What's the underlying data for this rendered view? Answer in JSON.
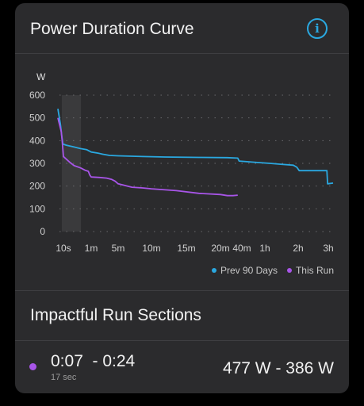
{
  "card": {
    "title": "Power Duration Curve",
    "info_icon": "info-icon"
  },
  "colors": {
    "prev": "#2aa8e0",
    "run": "#a855e8",
    "card_bg": "#2b2b2d"
  },
  "chart_data": {
    "type": "line",
    "ylabel": "W",
    "ylim": [
      0,
      600
    ],
    "yticks": [
      0,
      100,
      200,
      300,
      400,
      500,
      600
    ],
    "x_scale": "log",
    "xticks": [
      {
        "label": "10s",
        "sec": 10
      },
      {
        "label": "1m",
        "sec": 60
      },
      {
        "label": "5m",
        "sec": 300
      },
      {
        "label": "10m",
        "sec": 600
      },
      {
        "label": "15m",
        "sec": 900
      },
      {
        "label": "20m",
        "sec": 1200
      },
      {
        "label": "40m",
        "sec": 2400
      },
      {
        "label": "1h",
        "sec": 3600
      },
      {
        "label": "2h",
        "sec": 7200
      },
      {
        "label": "3h",
        "sec": 10800
      }
    ],
    "grid": "dotted horizontal",
    "highlight_range_sec": [
      7,
      24
    ],
    "series": [
      {
        "name": "Prev 90 Days",
        "color": "#2aa8e0",
        "points": [
          [
            1,
            540
          ],
          [
            3,
            470
          ],
          [
            5,
            420
          ],
          [
            8,
            385
          ],
          [
            12,
            380
          ],
          [
            20,
            372
          ],
          [
            30,
            365
          ],
          [
            45,
            360
          ],
          [
            60,
            350
          ],
          [
            90,
            345
          ],
          [
            120,
            340
          ],
          [
            180,
            335
          ],
          [
            300,
            333
          ],
          [
            500,
            330
          ],
          [
            700,
            328
          ],
          [
            1000,
            326
          ],
          [
            1500,
            325
          ],
          [
            2100,
            323
          ],
          [
            2200,
            310
          ],
          [
            3000,
            305
          ],
          [
            4000,
            300
          ],
          [
            5000,
            296
          ],
          [
            6500,
            292
          ],
          [
            7000,
            283
          ],
          [
            7300,
            268
          ],
          [
            10000,
            268
          ],
          [
            10600,
            268
          ],
          [
            10700,
            210
          ],
          [
            11000,
            213
          ]
        ]
      },
      {
        "name": "This Run",
        "color": "#a855e8",
        "points": [
          [
            1,
            500
          ],
          [
            2,
            470
          ],
          [
            4,
            440
          ],
          [
            6,
            400
          ],
          [
            8,
            360
          ],
          [
            10,
            330
          ],
          [
            15,
            305
          ],
          [
            20,
            290
          ],
          [
            30,
            280
          ],
          [
            40,
            270
          ],
          [
            50,
            265
          ],
          [
            55,
            248
          ],
          [
            60,
            240
          ],
          [
            100,
            238
          ],
          [
            150,
            235
          ],
          [
            200,
            230
          ],
          [
            250,
            222
          ],
          [
            300,
            210
          ],
          [
            400,
            195
          ],
          [
            500,
            192
          ],
          [
            600,
            188
          ],
          [
            800,
            180
          ],
          [
            1000,
            168
          ],
          [
            1200,
            163
          ],
          [
            1500,
            158
          ],
          [
            1800,
            158
          ],
          [
            2100,
            160
          ]
        ]
      }
    ]
  },
  "legend": {
    "prev_label": "Prev 90 Days",
    "run_label": "This Run"
  },
  "sections": {
    "title": "Impactful Run Sections",
    "row": {
      "time_range": "0:07  - 0:24",
      "duration": "17 sec",
      "watts": "477 W - 386 W"
    }
  }
}
